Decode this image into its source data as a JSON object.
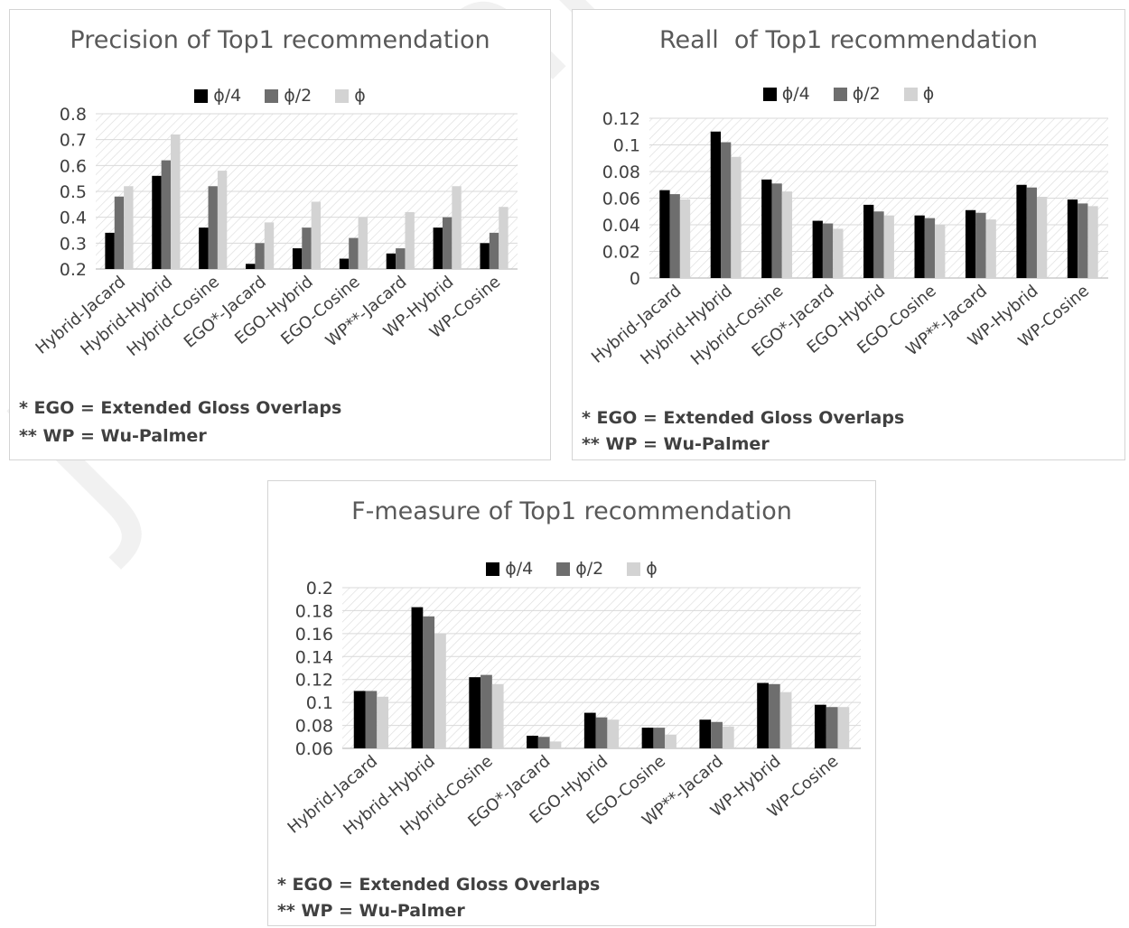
{
  "colors": {
    "phi4": "#000000",
    "phi2": "#6e6e6e",
    "phi": "#d3d3d3",
    "grid": "#d9d9d9",
    "axis_text": "#404040"
  },
  "footnotes": {
    "ego": "* EGO = Extended Gloss Overlaps",
    "wp": "** WP = Wu-Palmer"
  },
  "watermark": "Journal Pre-proof",
  "chart_data": [
    {
      "type": "bar",
      "title": "Precision of Top1 recommendation",
      "categories": [
        "Hybrid-Jacard",
        "Hybrid-Hybrid",
        "Hybrid-Cosine",
        "EGO*-Jacard",
        "EGO-Hybrid",
        "EGO-Cosine",
        "WP**-Jacard",
        "WP-Hybrid",
        "WP-Cosine"
      ],
      "series": [
        {
          "name": "ϕ/4",
          "values": [
            0.34,
            0.56,
            0.36,
            0.22,
            0.28,
            0.24,
            0.26,
            0.36,
            0.3
          ]
        },
        {
          "name": "ϕ/2",
          "values": [
            0.48,
            0.62,
            0.52,
            0.3,
            0.36,
            0.32,
            0.28,
            0.4,
            0.34
          ]
        },
        {
          "name": "ϕ",
          "values": [
            0.52,
            0.72,
            0.58,
            0.38,
            0.46,
            0.4,
            0.42,
            0.52,
            0.44
          ]
        }
      ],
      "ylim": [
        0.2,
        0.8
      ],
      "yticks": [
        "0.8",
        "0.7",
        "0.6",
        "0.5",
        "0.4",
        "0.3",
        "0.2"
      ],
      "grid": true,
      "legend": "top"
    },
    {
      "type": "bar",
      "title": "Reall  of Top1 recommendation",
      "categories": [
        "Hybrid-Jacard",
        "Hybrid-Hybrid",
        "Hybrid-Cosine",
        "EGO*-Jacard",
        "EGO-Hybrid",
        "EGO-Cosine",
        "WP**-Jacard",
        "WP-Hybrid",
        "WP-Cosine"
      ],
      "series": [
        {
          "name": "ϕ/4",
          "values": [
            0.066,
            0.11,
            0.074,
            0.043,
            0.055,
            0.047,
            0.051,
            0.07,
            0.059
          ]
        },
        {
          "name": "ϕ/2",
          "values": [
            0.063,
            0.102,
            0.071,
            0.041,
            0.05,
            0.045,
            0.049,
            0.068,
            0.056
          ]
        },
        {
          "name": "ϕ",
          "values": [
            0.059,
            0.091,
            0.065,
            0.037,
            0.047,
            0.04,
            0.044,
            0.061,
            0.054
          ]
        }
      ],
      "ylim": [
        0,
        0.12
      ],
      "yticks": [
        "0.12",
        "0.1",
        "0.08",
        "0.06",
        "0.04",
        "0.02",
        "0"
      ],
      "grid": true,
      "legend": "top"
    },
    {
      "type": "bar",
      "title": "F-measure of Top1 recommendation",
      "categories": [
        "Hybrid-Jacard",
        "Hybrid-Hybrid",
        "Hybrid-Cosine",
        "EGO*-Jacard",
        "EGO-Hybrid",
        "EGO-Cosine",
        "WP**-Jacard",
        "WP-Hybrid",
        "WP-Cosine"
      ],
      "series": [
        {
          "name": "ϕ/4",
          "values": [
            0.11,
            0.183,
            0.122,
            0.071,
            0.091,
            0.078,
            0.085,
            0.117,
            0.098
          ]
        },
        {
          "name": "ϕ/2",
          "values": [
            0.11,
            0.175,
            0.124,
            0.07,
            0.087,
            0.078,
            0.083,
            0.116,
            0.096
          ]
        },
        {
          "name": "ϕ",
          "values": [
            0.105,
            0.16,
            0.116,
            0.066,
            0.085,
            0.072,
            0.079,
            0.109,
            0.096
          ]
        }
      ],
      "ylim": [
        0.06,
        0.2
      ],
      "yticks": [
        "0.2",
        "0.18",
        "0.16",
        "0.14",
        "0.12",
        "0.1",
        "0.08",
        "0.06"
      ],
      "grid": true,
      "legend": "top"
    }
  ]
}
